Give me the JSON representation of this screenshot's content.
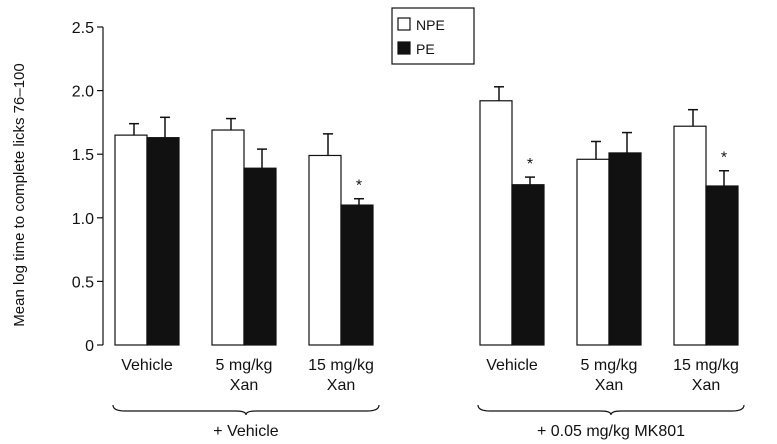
{
  "chart_data": {
    "type": "bar",
    "ylabel": "Mean log time to complete licks 76–100",
    "ylim": [
      0,
      2.5
    ],
    "yticks": [
      "0",
      "0.5",
      "1.0",
      "1.5",
      "2.0",
      "2.5"
    ],
    "yticks_values": [
      0,
      0.5,
      1.0,
      1.5,
      2.0,
      2.5
    ],
    "groups": [
      {
        "label": "+ Vehicle",
        "categories": [
          {
            "label": [
              "Vehicle"
            ],
            "npe": 1.65,
            "npe_err": 0.09,
            "pe": 1.63,
            "pe_err": 0.16,
            "significant": false
          },
          {
            "label": [
              "5 mg/kg",
              "Xan"
            ],
            "npe": 1.69,
            "npe_err": 0.09,
            "pe": 1.39,
            "pe_err": 0.15,
            "significant": false
          },
          {
            "label": [
              "15 mg/kg",
              "Xan"
            ],
            "npe": 1.49,
            "npe_err": 0.17,
            "pe": 1.1,
            "pe_err": 0.05,
            "significant": true
          }
        ]
      },
      {
        "label": "+ 0.05 mg/kg MK801",
        "categories": [
          {
            "label": [
              "Vehicle"
            ],
            "npe": 1.92,
            "npe_err": 0.11,
            "pe": 1.26,
            "pe_err": 0.06,
            "significant": true
          },
          {
            "label": [
              "5 mg/kg",
              "Xan"
            ],
            "npe": 1.46,
            "npe_err": 0.14,
            "pe": 1.51,
            "pe_err": 0.16,
            "significant": false
          },
          {
            "label": [
              "15 mg/kg",
              "Xan"
            ],
            "npe": 1.72,
            "npe_err": 0.13,
            "pe": 1.25,
            "pe_err": 0.12,
            "significant": true
          }
        ]
      }
    ],
    "series": [
      {
        "name": "NPE",
        "color": "#ffffff"
      },
      {
        "name": "PE",
        "color": "#111111"
      }
    ],
    "significance_marker": "*",
    "legend_position": "top-center"
  }
}
